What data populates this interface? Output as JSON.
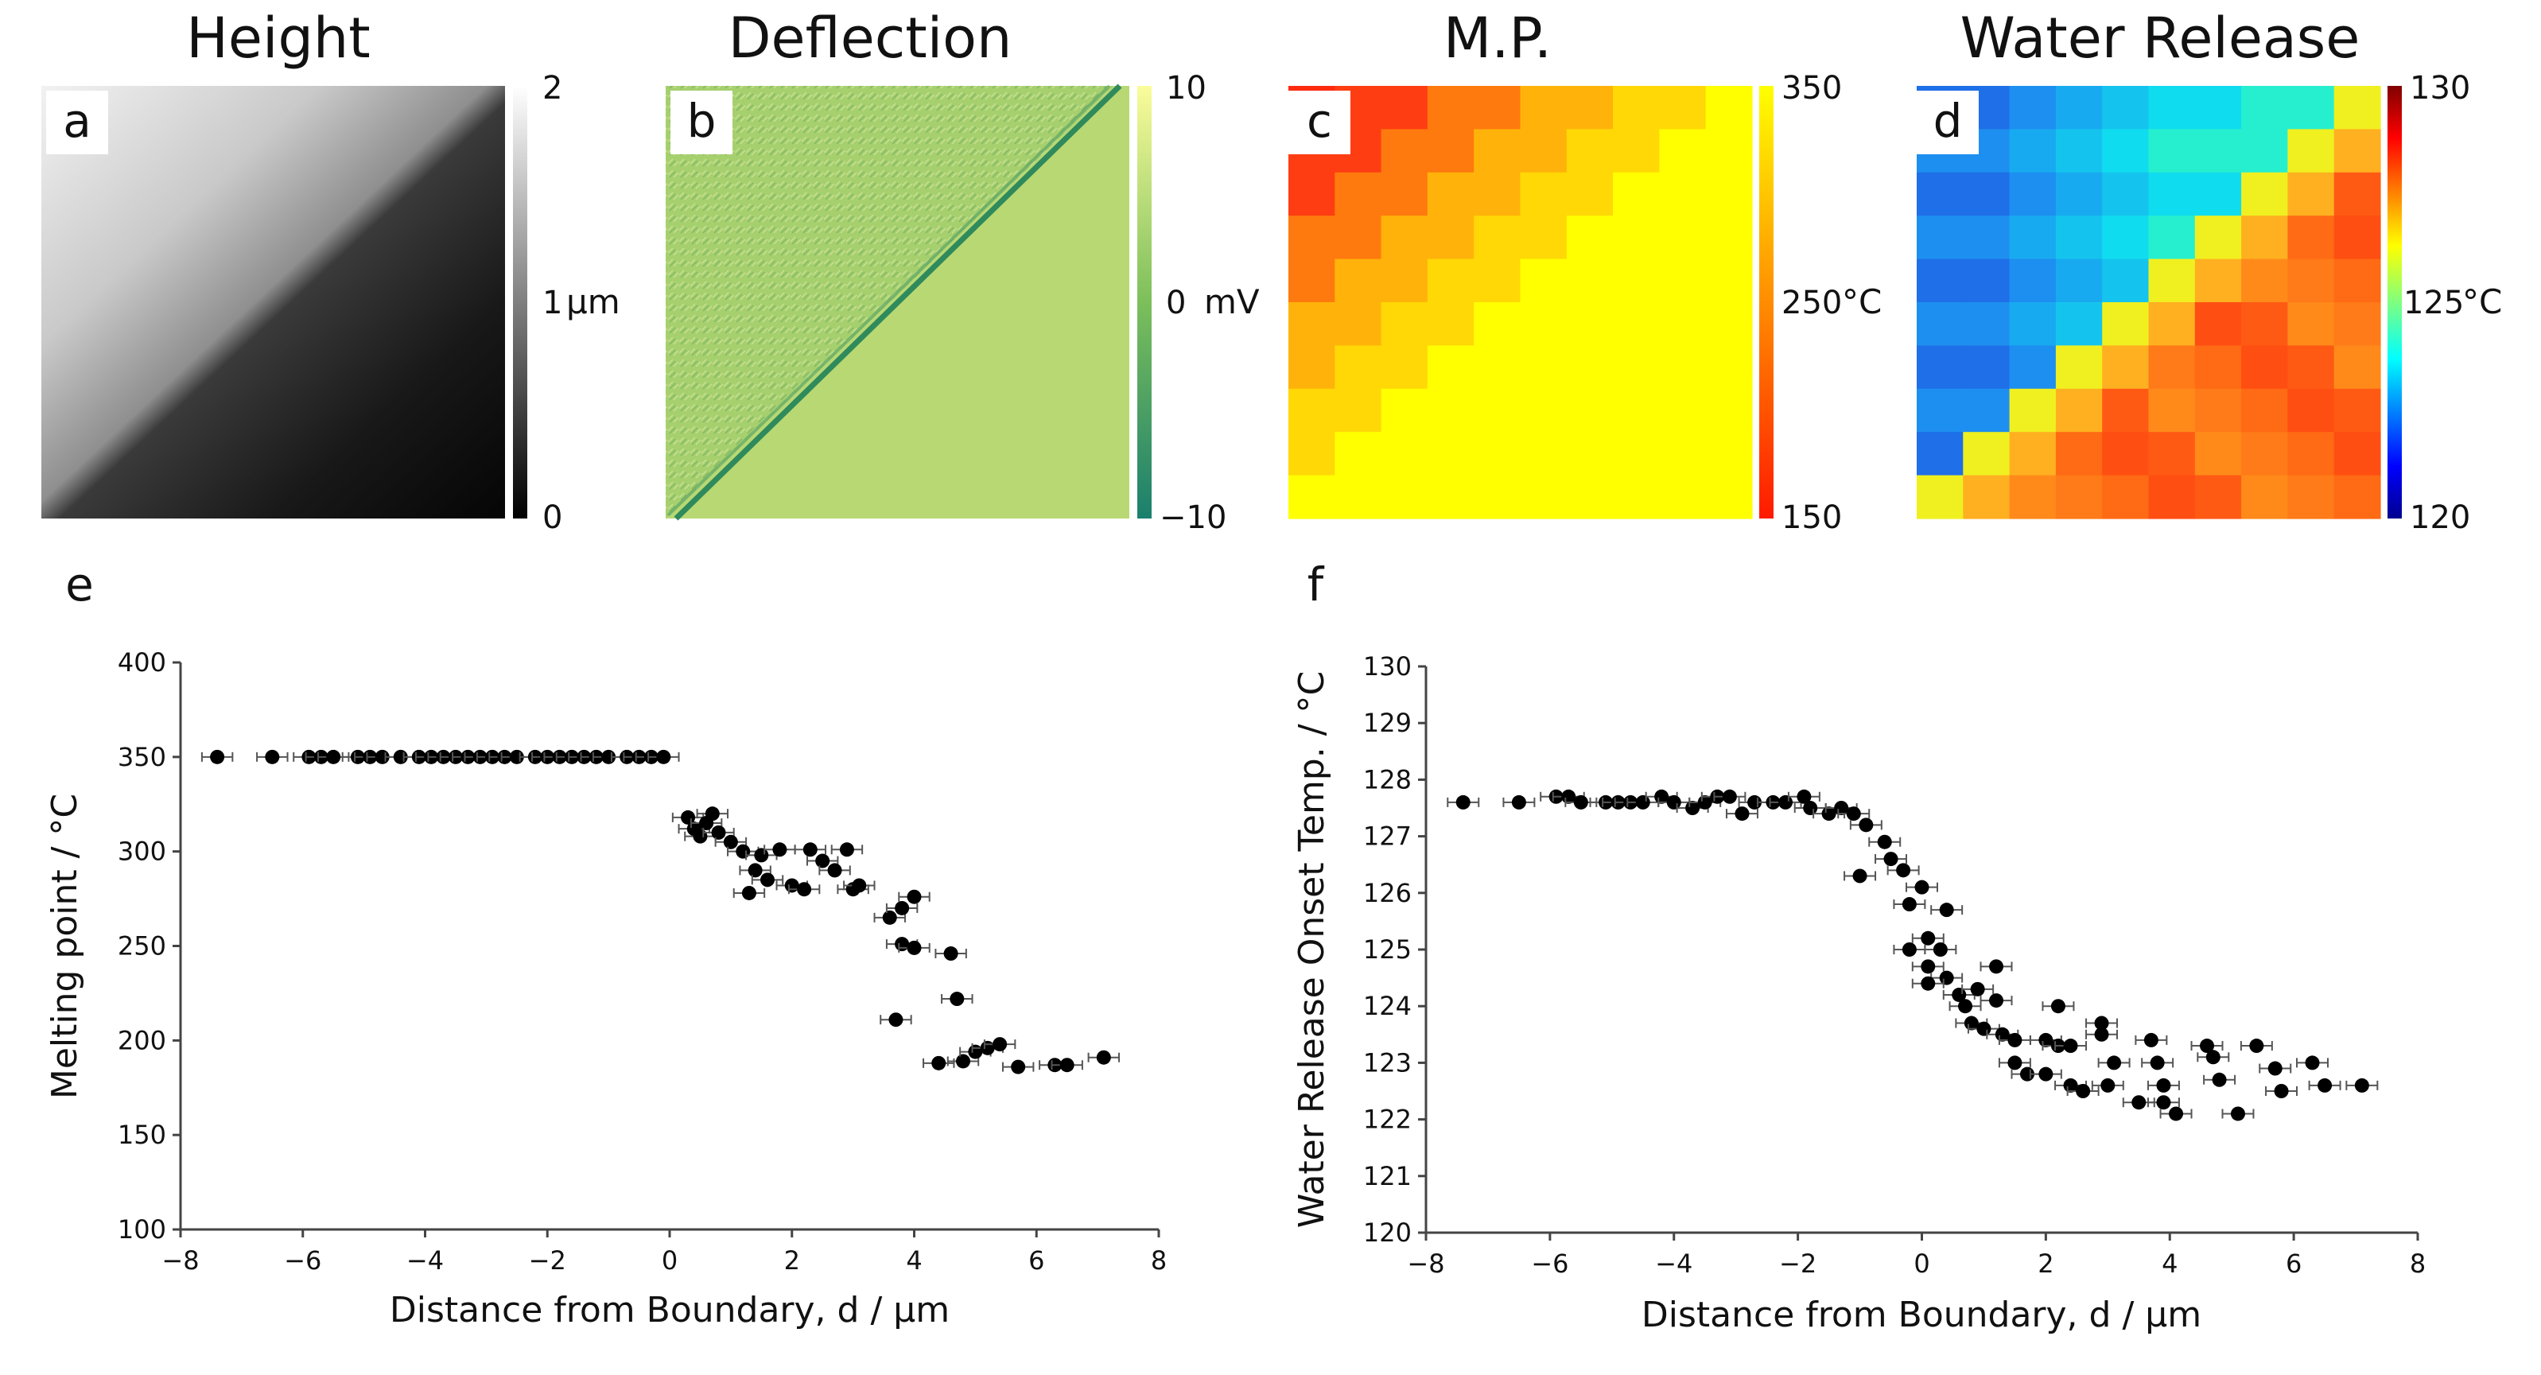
{
  "maps": {
    "height": {
      "title": "Height",
      "letter": "a",
      "scale": {
        "max": "2",
        "mid": "1",
        "min": "0",
        "unit": "μm"
      }
    },
    "deflection": {
      "title": "Deflection",
      "letter": "b",
      "scale": {
        "max": "10",
        "mid": "0",
        "min": "−10",
        "unit": "mV"
      }
    },
    "mp": {
      "title": "M.P.",
      "letter": "c",
      "scale": {
        "max": "350",
        "mid": "250",
        "min": "150",
        "unit": "°C"
      }
    },
    "water": {
      "title": "Water Release",
      "letter": "d",
      "scale": {
        "max": "130",
        "mid": "125",
        "min": "120",
        "unit": "°C"
      }
    }
  },
  "colors": {
    "deflection_light": "#b8d873",
    "deflection_dark": "#2f8a5c",
    "mp_low": "#ff1a00",
    "mp_high": "#ffff00",
    "point": "#000000"
  },
  "chart_data": [
    {
      "type": "scatter",
      "panel": "e",
      "title": "",
      "xlabel": "Distance from Boundary, d / μm",
      "ylabel": "Melting point / °C",
      "xlim": [
        -8,
        8
      ],
      "ylim": [
        100,
        400
      ],
      "xticks": [
        -8,
        -6,
        -4,
        -2,
        0,
        2,
        4,
        6,
        8
      ],
      "xtick_labels": [
        "−8",
        "−6",
        "−4",
        "−2",
        "0",
        "2",
        "4",
        "6",
        "8"
      ],
      "yticks": [
        100,
        150,
        200,
        250,
        300,
        350,
        400
      ],
      "ytick_labels": [
        "100",
        "150",
        "200",
        "250",
        "300",
        "350",
        "400"
      ],
      "xerr": 0.25,
      "points": [
        [
          -7.4,
          350
        ],
        [
          -6.5,
          350
        ],
        [
          -5.9,
          350
        ],
        [
          -5.7,
          350
        ],
        [
          -5.5,
          350
        ],
        [
          -5.1,
          350
        ],
        [
          -4.9,
          350
        ],
        [
          -4.7,
          350
        ],
        [
          -4.4,
          350
        ],
        [
          -4.1,
          350
        ],
        [
          -3.9,
          350
        ],
        [
          -3.7,
          350
        ],
        [
          -3.5,
          350
        ],
        [
          -3.3,
          350
        ],
        [
          -3.1,
          350
        ],
        [
          -2.9,
          350
        ],
        [
          -2.7,
          350
        ],
        [
          -2.5,
          350
        ],
        [
          -2.2,
          350
        ],
        [
          -2.0,
          350
        ],
        [
          -1.8,
          350
        ],
        [
          -1.6,
          350
        ],
        [
          -1.4,
          350
        ],
        [
          -1.2,
          350
        ],
        [
          -1.0,
          350
        ],
        [
          -0.7,
          350
        ],
        [
          -0.5,
          350
        ],
        [
          -0.3,
          350
        ],
        [
          -0.1,
          350
        ],
        [
          0.3,
          318
        ],
        [
          0.4,
          312
        ],
        [
          0.5,
          308
        ],
        [
          0.6,
          315
        ],
        [
          0.7,
          320
        ],
        [
          0.8,
          310
        ],
        [
          1.0,
          305
        ],
        [
          1.2,
          300
        ],
        [
          1.3,
          278
        ],
        [
          1.4,
          290
        ],
        [
          1.5,
          298
        ],
        [
          1.6,
          285
        ],
        [
          1.8,
          301
        ],
        [
          2.0,
          282
        ],
        [
          2.2,
          280
        ],
        [
          2.3,
          301
        ],
        [
          2.5,
          295
        ],
        [
          2.7,
          290
        ],
        [
          2.9,
          301
        ],
        [
          3.0,
          280
        ],
        [
          3.1,
          282
        ],
        [
          3.6,
          265
        ],
        [
          3.8,
          270
        ],
        [
          4.0,
          276
        ],
        [
          3.8,
          251
        ],
        [
          4.0,
          249
        ],
        [
          3.7,
          211
        ],
        [
          4.6,
          246
        ],
        [
          4.7,
          222
        ],
        [
          4.4,
          188
        ],
        [
          4.8,
          189
        ],
        [
          5.0,
          194
        ],
        [
          5.2,
          196
        ],
        [
          5.4,
          198
        ],
        [
          5.7,
          186
        ],
        [
          6.3,
          187
        ],
        [
          6.5,
          187
        ],
        [
          7.1,
          191
        ]
      ]
    },
    {
      "type": "scatter",
      "panel": "f",
      "title": "",
      "xlabel": "Distance from Boundary, d / μm",
      "ylabel": "Water Release Onset Temp. / °C",
      "xlim": [
        -8,
        8
      ],
      "ylim": [
        120,
        130
      ],
      "xticks": [
        -8,
        -6,
        -4,
        -2,
        0,
        2,
        4,
        6,
        8
      ],
      "xtick_labels": [
        "−8",
        "−6",
        "−4",
        "−2",
        "0",
        "2",
        "4",
        "6",
        "8"
      ],
      "yticks": [
        120,
        121,
        122,
        123,
        124,
        125,
        126,
        127,
        128,
        129,
        130
      ],
      "ytick_labels": [
        "120",
        "121",
        "122",
        "123",
        "124",
        "125",
        "126",
        "127",
        "128",
        "129",
        "130"
      ],
      "xerr": 0.25,
      "yerr": 0.1,
      "points": [
        [
          -7.4,
          127.6
        ],
        [
          -6.5,
          127.6
        ],
        [
          -5.9,
          127.7
        ],
        [
          -5.7,
          127.7
        ],
        [
          -5.5,
          127.6
        ],
        [
          -5.1,
          127.6
        ],
        [
          -4.9,
          127.6
        ],
        [
          -4.7,
          127.6
        ],
        [
          -4.5,
          127.6
        ],
        [
          -4.2,
          127.7
        ],
        [
          -4.0,
          127.6
        ],
        [
          -3.7,
          127.5
        ],
        [
          -3.5,
          127.6
        ],
        [
          -3.3,
          127.7
        ],
        [
          -3.1,
          127.7
        ],
        [
          -2.9,
          127.4
        ],
        [
          -2.7,
          127.6
        ],
        [
          -2.4,
          127.6
        ],
        [
          -2.2,
          127.6
        ],
        [
          -1.9,
          127.7
        ],
        [
          -1.8,
          127.5
        ],
        [
          -1.5,
          127.4
        ],
        [
          -1.3,
          127.5
        ],
        [
          -1.1,
          127.4
        ],
        [
          -0.9,
          127.2
        ],
        [
          -1.0,
          126.3
        ],
        [
          -0.6,
          126.9
        ],
        [
          -0.5,
          126.6
        ],
        [
          -0.3,
          126.4
        ],
        [
          -0.2,
          125.8
        ],
        [
          0.0,
          126.1
        ],
        [
          0.4,
          125.7
        ],
        [
          -0.2,
          125.0
        ],
        [
          0.1,
          125.2
        ],
        [
          0.3,
          125.0
        ],
        [
          0.1,
          124.7
        ],
        [
          0.4,
          124.5
        ],
        [
          0.1,
          124.4
        ],
        [
          0.6,
          124.2
        ],
        [
          0.7,
          124.0
        ],
        [
          0.8,
          123.7
        ],
        [
          1.0,
          123.6
        ],
        [
          0.9,
          124.3
        ],
        [
          1.2,
          124.1
        ],
        [
          1.3,
          123.5
        ],
        [
          1.5,
          123.4
        ],
        [
          1.2,
          124.7
        ],
        [
          1.5,
          123.0
        ],
        [
          1.7,
          122.8
        ],
        [
          2.0,
          122.8
        ],
        [
          2.0,
          123.4
        ],
        [
          2.2,
          123.3
        ],
        [
          2.2,
          124.0
        ],
        [
          2.4,
          123.3
        ],
        [
          2.4,
          122.6
        ],
        [
          2.6,
          122.5
        ],
        [
          2.9,
          123.7
        ],
        [
          2.9,
          123.5
        ],
        [
          3.0,
          122.6
        ],
        [
          3.1,
          123.0
        ],
        [
          3.5,
          122.3
        ],
        [
          3.7,
          123.4
        ],
        [
          3.8,
          123.0
        ],
        [
          3.9,
          122.6
        ],
        [
          3.9,
          122.3
        ],
        [
          4.1,
          122.1
        ],
        [
          4.6,
          123.3
        ],
        [
          4.7,
          123.1
        ],
        [
          4.8,
          122.7
        ],
        [
          5.1,
          122.1
        ],
        [
          5.4,
          123.3
        ],
        [
          5.7,
          122.9
        ],
        [
          5.8,
          122.5
        ],
        [
          6.3,
          123.0
        ],
        [
          6.5,
          122.6
        ],
        [
          7.1,
          122.6
        ]
      ]
    }
  ]
}
